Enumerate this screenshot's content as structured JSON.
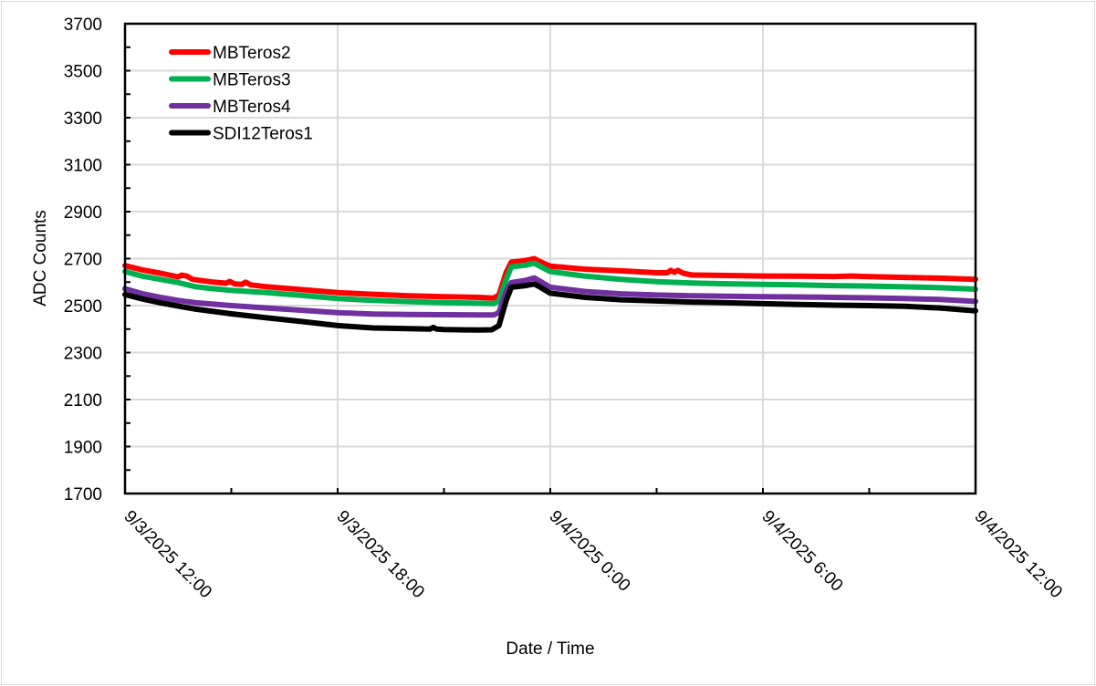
{
  "chart_data": {
    "type": "line",
    "title": "",
    "xlabel": "Date / Time",
    "ylabel": "ADC Counts",
    "ylim": [
      1700,
      3700
    ],
    "yticks": [
      1700,
      1900,
      2100,
      2300,
      2500,
      2700,
      2900,
      3100,
      3300,
      3500,
      3700
    ],
    "xlim_hours": [
      0,
      24
    ],
    "xticks": [
      {
        "hour": 0,
        "label": "9/3/2025 12:00"
      },
      {
        "hour": 6,
        "label": "9/3/2025 18:00"
      },
      {
        "hour": 12,
        "label": "9/4/2025 0:00"
      },
      {
        "hour": 18,
        "label": "9/4/2025 6:00"
      },
      {
        "hour": 24,
        "label": "9/4/2025 12:00"
      }
    ],
    "grid": true,
    "legend_position": "upper-left inside",
    "x_unit": "hours since 9/3/2025 12:00",
    "series": [
      {
        "name": "MBTeros2",
        "color": "#ff0000",
        "points": [
          [
            0,
            2670
          ],
          [
            0.5,
            2652
          ],
          [
            1,
            2638
          ],
          [
            1.5,
            2622
          ],
          [
            1.6,
            2630
          ],
          [
            1.75,
            2625
          ],
          [
            1.9,
            2612
          ],
          [
            2.5,
            2600
          ],
          [
            2.85,
            2595
          ],
          [
            2.95,
            2603
          ],
          [
            3.1,
            2592
          ],
          [
            3.3,
            2590
          ],
          [
            3.4,
            2600
          ],
          [
            3.55,
            2588
          ],
          [
            4,
            2580
          ],
          [
            5,
            2568
          ],
          [
            6,
            2555
          ],
          [
            7,
            2548
          ],
          [
            8,
            2542
          ],
          [
            9,
            2538
          ],
          [
            10,
            2535
          ],
          [
            10.4,
            2532
          ],
          [
            10.55,
            2545
          ],
          [
            10.75,
            2640
          ],
          [
            10.9,
            2685
          ],
          [
            11.2,
            2690
          ],
          [
            11.4,
            2695
          ],
          [
            11.55,
            2700
          ],
          [
            11.7,
            2688
          ],
          [
            12,
            2668
          ],
          [
            13,
            2655
          ],
          [
            14,
            2648
          ],
          [
            15,
            2640
          ],
          [
            15.3,
            2640
          ],
          [
            15.4,
            2650
          ],
          [
            15.5,
            2642
          ],
          [
            15.6,
            2650
          ],
          [
            15.75,
            2638
          ],
          [
            16,
            2630
          ],
          [
            17,
            2628
          ],
          [
            18,
            2626
          ],
          [
            19,
            2625
          ],
          [
            20,
            2624
          ],
          [
            20.5,
            2626
          ],
          [
            21,
            2623
          ],
          [
            22,
            2620
          ],
          [
            23,
            2617
          ],
          [
            24,
            2612
          ]
        ]
      },
      {
        "name": "MBTeros3",
        "color": "#00b050",
        "points": [
          [
            0,
            2645
          ],
          [
            0.5,
            2625
          ],
          [
            1,
            2612
          ],
          [
            1.5,
            2598
          ],
          [
            2,
            2580
          ],
          [
            2.5,
            2572
          ],
          [
            3,
            2565
          ],
          [
            4,
            2555
          ],
          [
            5,
            2543
          ],
          [
            6,
            2530
          ],
          [
            7,
            2522
          ],
          [
            8,
            2517
          ],
          [
            9,
            2513
          ],
          [
            10,
            2510
          ],
          [
            10.4,
            2508
          ],
          [
            10.55,
            2520
          ],
          [
            10.75,
            2610
          ],
          [
            10.9,
            2665
          ],
          [
            11.3,
            2672
          ],
          [
            11.55,
            2680
          ],
          [
            11.7,
            2668
          ],
          [
            12,
            2645
          ],
          [
            13,
            2625
          ],
          [
            14,
            2612
          ],
          [
            15,
            2602
          ],
          [
            16,
            2596
          ],
          [
            17,
            2593
          ],
          [
            18,
            2590
          ],
          [
            19,
            2588
          ],
          [
            20,
            2585
          ],
          [
            21,
            2583
          ],
          [
            22,
            2580
          ],
          [
            23,
            2576
          ],
          [
            24,
            2570
          ]
        ]
      },
      {
        "name": "MBTeros4",
        "color": "#7030a0",
        "points": [
          [
            0,
            2572
          ],
          [
            0.5,
            2550
          ],
          [
            1,
            2535
          ],
          [
            1.5,
            2522
          ],
          [
            2,
            2512
          ],
          [
            3,
            2500
          ],
          [
            4,
            2490
          ],
          [
            5,
            2480
          ],
          [
            6,
            2470
          ],
          [
            7,
            2464
          ],
          [
            8,
            2462
          ],
          [
            9,
            2461
          ],
          [
            10,
            2460
          ],
          [
            10.4,
            2460
          ],
          [
            10.55,
            2470
          ],
          [
            10.75,
            2560
          ],
          [
            10.9,
            2598
          ],
          [
            11.3,
            2607
          ],
          [
            11.55,
            2618
          ],
          [
            11.7,
            2605
          ],
          [
            12,
            2578
          ],
          [
            13,
            2560
          ],
          [
            14,
            2550
          ],
          [
            15,
            2545
          ],
          [
            16,
            2542
          ],
          [
            17,
            2540
          ],
          [
            18,
            2538
          ],
          [
            19,
            2537
          ],
          [
            20,
            2535
          ],
          [
            21,
            2533
          ],
          [
            22,
            2530
          ],
          [
            23,
            2526
          ],
          [
            24,
            2518
          ]
        ]
      },
      {
        "name": "SDI12Teros1",
        "color": "#000000",
        "points": [
          [
            0,
            2547
          ],
          [
            0.5,
            2528
          ],
          [
            1,
            2512
          ],
          [
            1.5,
            2498
          ],
          [
            2,
            2485
          ],
          [
            3,
            2465
          ],
          [
            4,
            2448
          ],
          [
            5,
            2432
          ],
          [
            6,
            2415
          ],
          [
            7,
            2405
          ],
          [
            8,
            2402
          ],
          [
            8.6,
            2400
          ],
          [
            8.7,
            2407
          ],
          [
            8.8,
            2400
          ],
          [
            9,
            2398
          ],
          [
            10,
            2396
          ],
          [
            10.35,
            2397
          ],
          [
            10.55,
            2415
          ],
          [
            10.75,
            2520
          ],
          [
            10.9,
            2578
          ],
          [
            11.3,
            2585
          ],
          [
            11.55,
            2592
          ],
          [
            11.7,
            2580
          ],
          [
            12,
            2553
          ],
          [
            13,
            2535
          ],
          [
            14,
            2525
          ],
          [
            15,
            2520
          ],
          [
            16,
            2515
          ],
          [
            17,
            2512
          ],
          [
            18,
            2508
          ],
          [
            19,
            2505
          ],
          [
            20,
            2502
          ],
          [
            21,
            2500
          ],
          [
            22,
            2497
          ],
          [
            23,
            2490
          ],
          [
            24,
            2478
          ]
        ]
      }
    ]
  }
}
